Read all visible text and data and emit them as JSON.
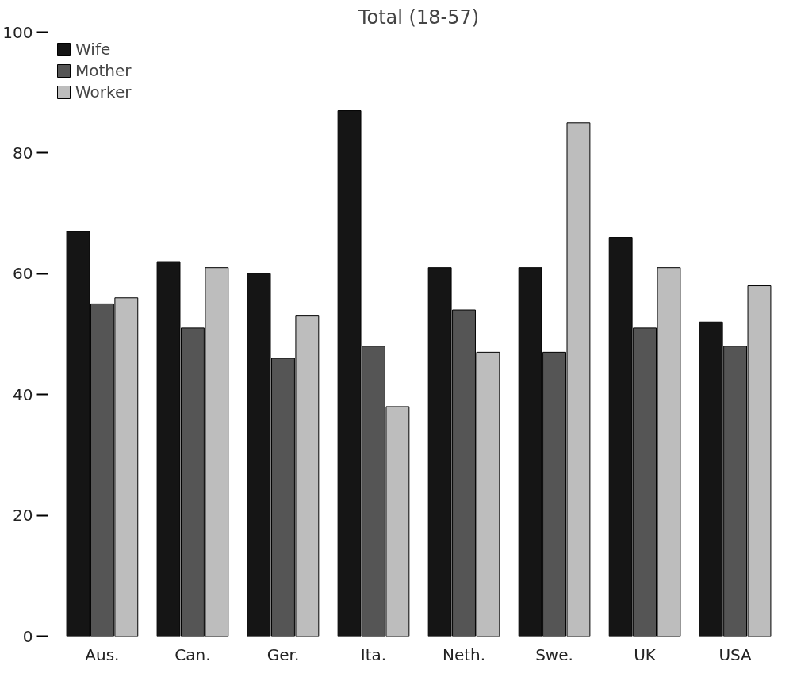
{
  "chart_data": {
    "type": "bar",
    "title": "Total (18-57)",
    "categories": [
      "Aus.",
      "Can.",
      "Ger.",
      "Ita.",
      "Neth.",
      "Swe.",
      "UK",
      "USA"
    ],
    "series": [
      {
        "name": "Wife",
        "color": "#151515",
        "values": [
          67,
          62,
          60,
          87,
          61,
          61,
          66,
          52
        ]
      },
      {
        "name": "Mother",
        "color": "#555555",
        "values": [
          55,
          51,
          46,
          48,
          54,
          47,
          51,
          48
        ]
      },
      {
        "name": "Worker",
        "color": "#bdbdbd",
        "values": [
          56,
          61,
          53,
          38,
          47,
          85,
          61,
          58
        ]
      }
    ],
    "ylim": [
      0,
      100
    ],
    "yticks": [
      0,
      20,
      40,
      60,
      80,
      100
    ],
    "legend": "top left"
  }
}
